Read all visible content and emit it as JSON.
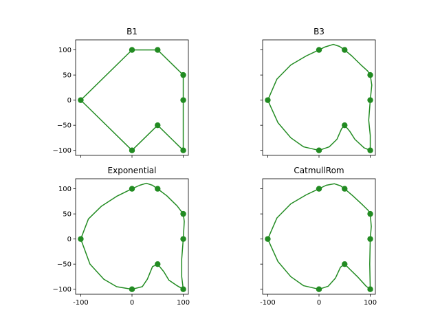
{
  "chart_data": [
    {
      "type": "line",
      "title": "B1",
      "series_color": "#228B22",
      "xlim": [
        -110,
        110
      ],
      "ylim": [
        -110,
        120
      ],
      "xticks": [
        -100,
        0,
        100
      ],
      "yticks": [
        -100,
        -50,
        0,
        50,
        100
      ],
      "show_xtick_labels": false,
      "show_ytick_labels": true,
      "control_points": [
        [
          0,
          100
        ],
        [
          50,
          100
        ],
        [
          100,
          50
        ],
        [
          100,
          0
        ],
        [
          100,
          -100
        ],
        [
          50,
          -50
        ],
        [
          0,
          -100
        ],
        [
          -100,
          0
        ]
      ],
      "curve": [
        [
          0,
          100
        ],
        [
          50,
          100
        ],
        [
          100,
          50
        ],
        [
          100,
          0
        ],
        [
          100,
          -100
        ],
        [
          50,
          -50
        ],
        [
          0,
          -100
        ],
        [
          -100,
          0
        ],
        [
          0,
          100
        ]
      ]
    },
    {
      "type": "line",
      "title": "B3",
      "series_color": "#228B22",
      "xlim": [
        -110,
        110
      ],
      "ylim": [
        -110,
        120
      ],
      "xticks": [
        -100,
        0,
        100
      ],
      "yticks": [
        -100,
        -50,
        0,
        50,
        100
      ],
      "show_xtick_labels": false,
      "show_ytick_labels": false,
      "control_points": [
        [
          0,
          100
        ],
        [
          50,
          100
        ],
        [
          100,
          50
        ],
        [
          100,
          0
        ],
        [
          100,
          -100
        ],
        [
          50,
          -50
        ],
        [
          0,
          -100
        ],
        [
          -100,
          0
        ]
      ],
      "curve": [
        [
          0,
          100
        ],
        [
          12,
          106
        ],
        [
          28,
          111
        ],
        [
          40,
          107
        ],
        [
          50,
          100
        ],
        [
          64,
          88
        ],
        [
          82,
          70
        ],
        [
          95,
          58
        ],
        [
          100,
          50
        ],
        [
          103,
          30
        ],
        [
          100,
          0
        ],
        [
          97,
          -40
        ],
        [
          100,
          -70
        ],
        [
          100,
          -100
        ],
        [
          88,
          -95
        ],
        [
          70,
          -78
        ],
        [
          60,
          -62
        ],
        [
          50,
          -50
        ],
        [
          44,
          -57
        ],
        [
          35,
          -78
        ],
        [
          20,
          -93
        ],
        [
          0,
          -100
        ],
        [
          -30,
          -93
        ],
        [
          -55,
          -75
        ],
        [
          -80,
          -45
        ],
        [
          -100,
          0
        ],
        [
          -82,
          42
        ],
        [
          -55,
          70
        ],
        [
          -25,
          88
        ],
        [
          0,
          100
        ]
      ]
    },
    {
      "type": "line",
      "title": "Exponential",
      "series_color": "#228B22",
      "xlim": [
        -110,
        110
      ],
      "ylim": [
        -110,
        120
      ],
      "xticks": [
        -100,
        0,
        100
      ],
      "yticks": [
        -100,
        -50,
        0,
        50,
        100
      ],
      "show_xtick_labels": true,
      "show_ytick_labels": true,
      "control_points": [
        [
          0,
          100
        ],
        [
          50,
          100
        ],
        [
          100,
          50
        ],
        [
          100,
          0
        ],
        [
          100,
          -100
        ],
        [
          50,
          -50
        ],
        [
          0,
          -100
        ],
        [
          -100,
          0
        ]
      ],
      "curve": [
        [
          0,
          100
        ],
        [
          15,
          107
        ],
        [
          28,
          111
        ],
        [
          40,
          107
        ],
        [
          50,
          100
        ],
        [
          68,
          86
        ],
        [
          88,
          66
        ],
        [
          100,
          50
        ],
        [
          102,
          35
        ],
        [
          100,
          0
        ],
        [
          97,
          -40
        ],
        [
          97,
          -75
        ],
        [
          100,
          -100
        ],
        [
          88,
          -93
        ],
        [
          72,
          -82
        ],
        [
          62,
          -65
        ],
        [
          50,
          -50
        ],
        [
          40,
          -55
        ],
        [
          30,
          -80
        ],
        [
          20,
          -95
        ],
        [
          0,
          -100
        ],
        [
          -30,
          -95
        ],
        [
          -55,
          -80
        ],
        [
          -82,
          -50
        ],
        [
          -100,
          0
        ],
        [
          -85,
          40
        ],
        [
          -60,
          65
        ],
        [
          -30,
          85
        ],
        [
          0,
          100
        ]
      ]
    },
    {
      "type": "line",
      "title": "CatmullRom",
      "series_color": "#228B22",
      "xlim": [
        -110,
        110
      ],
      "ylim": [
        -110,
        120
      ],
      "xticks": [
        -100,
        0,
        100
      ],
      "yticks": [
        -100,
        -50,
        0,
        50,
        100
      ],
      "show_xtick_labels": true,
      "show_ytick_labels": false,
      "control_points": [
        [
          0,
          100
        ],
        [
          50,
          100
        ],
        [
          100,
          50
        ],
        [
          100,
          0
        ],
        [
          100,
          -100
        ],
        [
          50,
          -50
        ],
        [
          0,
          -100
        ],
        [
          -100,
          0
        ]
      ],
      "curve": [
        [
          0,
          100
        ],
        [
          14,
          107
        ],
        [
          30,
          110
        ],
        [
          42,
          106
        ],
        [
          50,
          100
        ],
        [
          66,
          86
        ],
        [
          85,
          68
        ],
        [
          96,
          57
        ],
        [
          100,
          50
        ],
        [
          102,
          25
        ],
        [
          100,
          0
        ],
        [
          99,
          -50
        ],
        [
          100,
          -100
        ],
        [
          92,
          -94
        ],
        [
          75,
          -75
        ],
        [
          60,
          -60
        ],
        [
          50,
          -50
        ],
        [
          42,
          -56
        ],
        [
          32,
          -78
        ],
        [
          18,
          -94
        ],
        [
          0,
          -100
        ],
        [
          -30,
          -93
        ],
        [
          -55,
          -75
        ],
        [
          -80,
          -45
        ],
        [
          -100,
          0
        ],
        [
          -82,
          42
        ],
        [
          -55,
          70
        ],
        [
          -25,
          88
        ],
        [
          0,
          100
        ]
      ]
    }
  ]
}
